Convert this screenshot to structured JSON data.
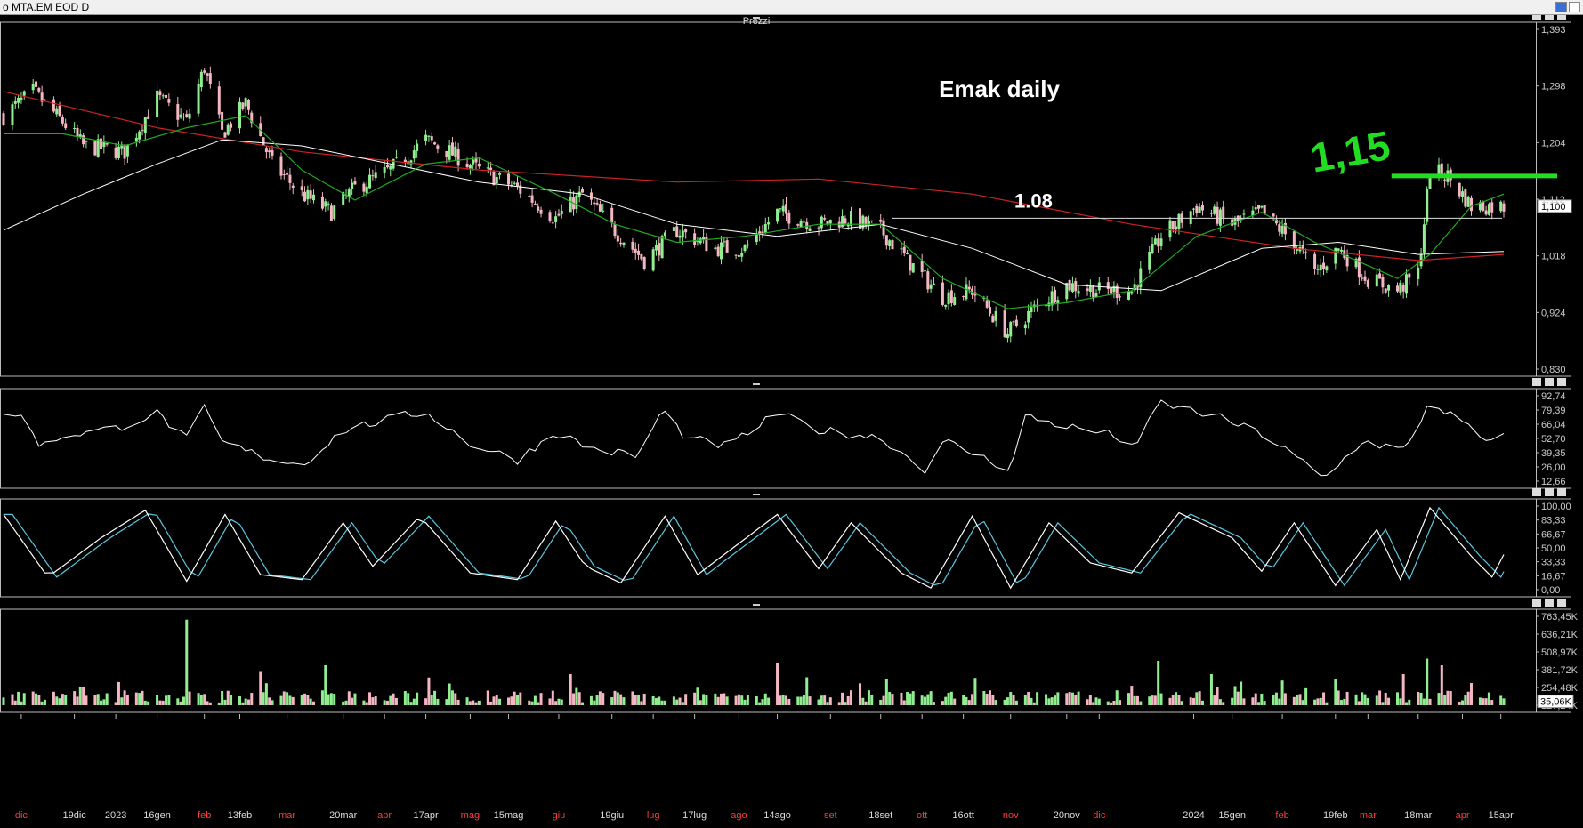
{
  "window": {
    "title": "o MTA.EM EOD D"
  },
  "panels": {
    "price_title": "Prezzi"
  },
  "colors": {
    "up": "#90ee90",
    "down": "#f4b6c2",
    "sma_fast": "#1faa1f",
    "sma_mid": "#ffffff",
    "sma_slow": "#cc2222",
    "stoch_k": "#ffffff",
    "stoch_d": "#5bc8e0",
    "volume_up": "#90ee90",
    "volume_down": "#f4b6c2",
    "annot_green": "#22dd22"
  },
  "chart_data": [
    {
      "type": "candlestick",
      "panel": "price",
      "ylim": [
        0.83,
        1.393
      ],
      "yticks": [
        "1,393",
        "1,298",
        "1,204",
        "1,112",
        "1,018",
        "0,924",
        "0,830"
      ],
      "last_price_label": "1,100",
      "x_range": [
        "2022-11-25",
        "2024-04-16"
      ],
      "xticks": [
        {
          "label": "dic",
          "date": "2022-12-01",
          "month": true
        },
        {
          "label": "19dic",
          "date": "2022-12-19",
          "month": false
        },
        {
          "label": "2023",
          "date": "2023-01-02",
          "month": false
        },
        {
          "label": "16gen",
          "date": "2023-01-16",
          "month": false
        },
        {
          "label": "feb",
          "date": "2023-02-01",
          "month": true
        },
        {
          "label": "13feb",
          "date": "2023-02-13",
          "month": false
        },
        {
          "label": "mar",
          "date": "2023-03-01",
          "month": true
        },
        {
          "label": "20mar",
          "date": "2023-03-20",
          "month": false
        },
        {
          "label": "apr",
          "date": "2023-04-03",
          "month": true
        },
        {
          "label": "17apr",
          "date": "2023-04-17",
          "month": false
        },
        {
          "label": "mag",
          "date": "2023-05-02",
          "month": true
        },
        {
          "label": "15mag",
          "date": "2023-05-15",
          "month": false
        },
        {
          "label": "giu",
          "date": "2023-06-01",
          "month": true
        },
        {
          "label": "19giu",
          "date": "2023-06-19",
          "month": false
        },
        {
          "label": "lug",
          "date": "2023-07-03",
          "month": true
        },
        {
          "label": "17lug",
          "date": "2023-07-17",
          "month": false
        },
        {
          "label": "ago",
          "date": "2023-08-01",
          "month": true
        },
        {
          "label": "14ago",
          "date": "2023-08-14",
          "month": false
        },
        {
          "label": "set",
          "date": "2023-09-01",
          "month": true
        },
        {
          "label": "18set",
          "date": "2023-09-18",
          "month": false
        },
        {
          "label": "ott",
          "date": "2023-10-02",
          "month": true
        },
        {
          "label": "16ott",
          "date": "2023-10-16",
          "month": false
        },
        {
          "label": "nov",
          "date": "2023-11-01",
          "month": true
        },
        {
          "label": "20nov",
          "date": "2023-11-20",
          "month": false
        },
        {
          "label": "dic",
          "date": "2023-12-01",
          "month": true
        },
        {
          "label": "2024",
          "date": "2024-01-02",
          "month": false
        },
        {
          "label": "15gen",
          "date": "2024-01-15",
          "month": false
        },
        {
          "label": "feb",
          "date": "2024-02-01",
          "month": true
        },
        {
          "label": "19feb",
          "date": "2024-02-19",
          "month": false
        },
        {
          "label": "mar",
          "date": "2024-03-01",
          "month": true
        },
        {
          "label": "18mar",
          "date": "2024-03-18",
          "month": false
        },
        {
          "label": "apr",
          "date": "2024-04-02",
          "month": true
        },
        {
          "label": "15apr",
          "date": "2024-04-15",
          "month": false
        }
      ],
      "close_path": [
        [
          "2022-11-25",
          1.25
        ],
        [
          "2022-12-05",
          1.29
        ],
        [
          "2022-12-15",
          1.24
        ],
        [
          "2022-12-22",
          1.2
        ],
        [
          "2023-01-05",
          1.19
        ],
        [
          "2023-01-16",
          1.28
        ],
        [
          "2023-01-26",
          1.24
        ],
        [
          "2023-02-01",
          1.33
        ],
        [
          "2023-02-07",
          1.22
        ],
        [
          "2023-02-15",
          1.27
        ],
        [
          "2023-02-24",
          1.17
        ],
        [
          "2023-03-06",
          1.12
        ],
        [
          "2023-03-16",
          1.09
        ],
        [
          "2023-03-24",
          1.13
        ],
        [
          "2023-04-05",
          1.16
        ],
        [
          "2023-04-17",
          1.21
        ],
        [
          "2023-04-25",
          1.19
        ],
        [
          "2023-05-05",
          1.16
        ],
        [
          "2023-05-18",
          1.13
        ],
        [
          "2023-05-31",
          1.08
        ],
        [
          "2023-06-09",
          1.12
        ],
        [
          "2023-06-20",
          1.06
        ],
        [
          "2023-06-30",
          1.01
        ],
        [
          "2023-07-11",
          1.06
        ],
        [
          "2023-07-24",
          1.03
        ],
        [
          "2023-08-03",
          1.03
        ],
        [
          "2023-08-14",
          1.09
        ],
        [
          "2023-08-28",
          1.07
        ],
        [
          "2023-09-07",
          1.08
        ],
        [
          "2023-09-18",
          1.06
        ],
        [
          "2023-09-29",
          1.0
        ],
        [
          "2023-10-09",
          0.95
        ],
        [
          "2023-10-19",
          0.96
        ],
        [
          "2023-10-31",
          0.89
        ],
        [
          "2023-11-09",
          0.93
        ],
        [
          "2023-11-20",
          0.97
        ],
        [
          "2023-12-01",
          0.96
        ],
        [
          "2023-12-12",
          0.96
        ],
        [
          "2023-12-22",
          1.05
        ],
        [
          "2024-01-03",
          1.1
        ],
        [
          "2024-01-15",
          1.07
        ],
        [
          "2024-01-25",
          1.09
        ],
        [
          "2024-02-05",
          1.04
        ],
        [
          "2024-02-12",
          0.99
        ],
        [
          "2024-02-20",
          1.03
        ],
        [
          "2024-03-01",
          0.98
        ],
        [
          "2024-03-11",
          0.96
        ],
        [
          "2024-03-18",
          0.99
        ],
        [
          "2024-03-22",
          1.16
        ],
        [
          "2024-03-28",
          1.15
        ],
        [
          "2024-04-05",
          1.1
        ],
        [
          "2024-04-16",
          1.1
        ]
      ],
      "sma_fast_path": [
        [
          "2022-11-25",
          1.22
        ],
        [
          "2022-12-15",
          1.22
        ],
        [
          "2023-01-05",
          1.2
        ],
        [
          "2023-01-26",
          1.23
        ],
        [
          "2023-02-15",
          1.25
        ],
        [
          "2023-03-06",
          1.16
        ],
        [
          "2023-03-24",
          1.11
        ],
        [
          "2023-04-17",
          1.17
        ],
        [
          "2023-05-05",
          1.18
        ],
        [
          "2023-05-31",
          1.12
        ],
        [
          "2023-06-20",
          1.07
        ],
        [
          "2023-07-11",
          1.04
        ],
        [
          "2023-08-03",
          1.05
        ],
        [
          "2023-08-28",
          1.07
        ],
        [
          "2023-09-18",
          1.07
        ],
        [
          "2023-10-09",
          0.98
        ],
        [
          "2023-10-31",
          0.93
        ],
        [
          "2023-11-20",
          0.94
        ],
        [
          "2023-12-12",
          0.96
        ],
        [
          "2024-01-03",
          1.05
        ],
        [
          "2024-01-25",
          1.09
        ],
        [
          "2024-02-12",
          1.04
        ],
        [
          "2024-03-11",
          0.98
        ],
        [
          "2024-03-22",
          1.02
        ],
        [
          "2024-04-05",
          1.1
        ],
        [
          "2024-04-16",
          1.12
        ]
      ],
      "sma_mid_path": [
        [
          "2022-11-25",
          1.06
        ],
        [
          "2022-12-22",
          1.12
        ],
        [
          "2023-01-16",
          1.17
        ],
        [
          "2023-02-07",
          1.21
        ],
        [
          "2023-03-06",
          1.2
        ],
        [
          "2023-04-05",
          1.17
        ],
        [
          "2023-05-05",
          1.14
        ],
        [
          "2023-06-09",
          1.12
        ],
        [
          "2023-07-11",
          1.07
        ],
        [
          "2023-08-14",
          1.05
        ],
        [
          "2023-09-18",
          1.07
        ],
        [
          "2023-10-19",
          1.03
        ],
        [
          "2023-11-20",
          0.97
        ],
        [
          "2023-12-22",
          0.96
        ],
        [
          "2024-01-25",
          1.03
        ],
        [
          "2024-02-20",
          1.04
        ],
        [
          "2024-03-18",
          1.02
        ],
        [
          "2024-04-16",
          1.025
        ]
      ],
      "sma_slow_path": [
        [
          "2022-11-25",
          1.29
        ],
        [
          "2023-01-16",
          1.23
        ],
        [
          "2023-03-06",
          1.19
        ],
        [
          "2023-05-05",
          1.16
        ],
        [
          "2023-07-11",
          1.14
        ],
        [
          "2023-08-28",
          1.145
        ],
        [
          "2023-10-19",
          1.12
        ],
        [
          "2023-12-12",
          1.07
        ],
        [
          "2024-02-05",
          1.03
        ],
        [
          "2024-03-18",
          1.01
        ],
        [
          "2024-04-16",
          1.02
        ]
      ],
      "annotations": {
        "title": "Emak daily",
        "support_label": "1.08",
        "support_level": 1.08,
        "support_from": "2023-09-22",
        "resistance_label": "1,15",
        "resistance_level": 1.15,
        "resistance_from": "2024-03-18"
      }
    },
    {
      "type": "line",
      "panel": "oscillator",
      "ylim": [
        5,
        97
      ],
      "yticks": [
        "92,74",
        "79,39",
        "66,04",
        "52,70",
        "39,35",
        "26,00",
        "12,66"
      ],
      "path": [
        [
          "2022-11-25",
          80
        ],
        [
          "2022-12-01",
          74
        ],
        [
          "2022-12-08",
          42
        ],
        [
          "2022-12-15",
          54
        ],
        [
          "2023-01-02",
          62
        ],
        [
          "2023-01-16",
          78
        ],
        [
          "2023-01-26",
          50
        ],
        [
          "2023-02-01",
          84
        ],
        [
          "2023-02-07",
          47
        ],
        [
          "2023-02-20",
          32
        ],
        [
          "2023-03-06",
          22
        ],
        [
          "2023-03-20",
          60
        ],
        [
          "2023-04-05",
          72
        ],
        [
          "2023-04-17",
          80
        ],
        [
          "2023-05-02",
          45
        ],
        [
          "2023-05-18",
          28
        ],
        [
          "2023-05-31",
          58
        ],
        [
          "2023-06-12",
          40
        ],
        [
          "2023-06-28",
          32
        ],
        [
          "2023-07-06",
          82
        ],
        [
          "2023-07-14",
          52
        ],
        [
          "2023-07-28",
          42
        ],
        [
          "2023-08-14",
          78
        ],
        [
          "2023-08-28",
          60
        ],
        [
          "2023-09-18",
          52
        ],
        [
          "2023-10-03",
          18
        ],
        [
          "2023-10-10",
          48
        ],
        [
          "2023-10-24",
          28
        ],
        [
          "2023-11-01",
          18
        ],
        [
          "2023-11-06",
          75
        ],
        [
          "2023-11-20",
          64
        ],
        [
          "2023-12-05",
          55
        ],
        [
          "2023-12-14",
          42
        ],
        [
          "2023-12-21",
          90
        ],
        [
          "2024-01-10",
          74
        ],
        [
          "2024-01-25",
          56
        ],
        [
          "2024-02-06",
          30
        ],
        [
          "2024-02-15",
          7
        ],
        [
          "2024-02-28",
          48
        ],
        [
          "2024-03-14",
          38
        ],
        [
          "2024-03-22",
          92
        ],
        [
          "2024-04-03",
          65
        ],
        [
          "2024-04-11",
          45
        ],
        [
          "2024-04-16",
          52
        ]
      ]
    },
    {
      "type": "line",
      "panel": "stochastic",
      "ylim": [
        0,
        100
      ],
      "yticks": [
        "100,00",
        "83,33",
        "66,67",
        "50,00",
        "33,33",
        "16,67",
        "0,00"
      ],
      "pivots": [
        [
          "2022-11-25",
          90
        ],
        [
          "2022-12-10",
          15
        ],
        [
          "2022-12-28",
          62
        ],
        [
          "2023-01-12",
          95
        ],
        [
          "2023-01-26",
          10
        ],
        [
          "2023-02-08",
          90
        ],
        [
          "2023-02-20",
          18
        ],
        [
          "2023-03-06",
          12
        ],
        [
          "2023-03-20",
          80
        ],
        [
          "2023-03-30",
          28
        ],
        [
          "2023-04-15",
          88
        ],
        [
          "2023-05-02",
          20
        ],
        [
          "2023-05-18",
          12
        ],
        [
          "2023-05-31",
          82
        ],
        [
          "2023-06-10",
          28
        ],
        [
          "2023-06-22",
          8
        ],
        [
          "2023-07-07",
          88
        ],
        [
          "2023-07-18",
          18
        ],
        [
          "2023-08-14",
          90
        ],
        [
          "2023-08-28",
          25
        ],
        [
          "2023-09-08",
          80
        ],
        [
          "2023-09-25",
          20
        ],
        [
          "2023-10-05",
          2
        ],
        [
          "2023-10-19",
          88
        ],
        [
          "2023-11-01",
          2
        ],
        [
          "2023-11-14",
          80
        ],
        [
          "2023-11-28",
          32
        ],
        [
          "2023-12-12",
          20
        ],
        [
          "2023-12-28",
          92
        ],
        [
          "2024-01-15",
          62
        ],
        [
          "2024-01-25",
          22
        ],
        [
          "2024-02-05",
          80
        ],
        [
          "2024-02-19",
          5
        ],
        [
          "2024-03-04",
          72
        ],
        [
          "2024-03-12",
          12
        ],
        [
          "2024-03-22",
          98
        ],
        [
          "2024-04-05",
          40
        ],
        [
          "2024-04-12",
          15
        ],
        [
          "2024-04-16",
          42
        ]
      ]
    },
    {
      "type": "bar",
      "panel": "volume",
      "ylim": [
        0,
        800
      ],
      "yticks": [
        "763,45K",
        "636,21K",
        "508,97K",
        "381,72K",
        "254,48K",
        "127,24K"
      ],
      "last_label": "35,06K",
      "spikes": [
        [
          "2023-01-26",
          770
        ],
        [
          "2023-02-20",
          300
        ],
        [
          "2023-03-14",
          360
        ],
        [
          "2023-04-18",
          250
        ],
        [
          "2023-06-05",
          280
        ],
        [
          "2023-08-14",
          380
        ],
        [
          "2023-09-20",
          240
        ],
        [
          "2023-12-21",
          400
        ],
        [
          "2024-01-08",
          280
        ],
        [
          "2024-03-13",
          280
        ],
        [
          "2024-03-21",
          420
        ],
        [
          "2024-03-26",
          360
        ],
        [
          "2024-04-05",
          200
        ]
      ]
    }
  ]
}
